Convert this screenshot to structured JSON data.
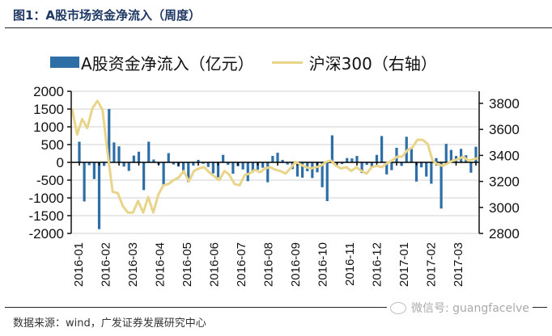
{
  "header": {
    "title": "图1：A股市场资金净流入（周度）"
  },
  "legend": {
    "bar_label": "A股资金净流入（亿元）",
    "line_label": "沪深300（右轴）"
  },
  "footer": {
    "source": "数据来源：wind，广发证券发展研究中心",
    "watermark": "微信号: guangfacelve"
  },
  "colors": {
    "bar": "#2e6ea6",
    "line": "#e8d58a",
    "grid": "#d0d0d0",
    "axis": "#111111"
  },
  "chart_data": {
    "type": "bar+line",
    "title": "A股市场资金净流入（周度）",
    "xlabel": "",
    "ylabel": "A股资金净流入（亿元）",
    "ylabel_right": "沪深300（右轴）",
    "ylim": [
      -2000,
      2000
    ],
    "ylim_right": [
      2800,
      3800
    ],
    "yticks": [
      "2000",
      "1500",
      "1000",
      "500",
      "0",
      "-500",
      "-1000",
      "-1500",
      "-2000"
    ],
    "yticks_right": [
      "3800",
      "3600",
      "3400",
      "3200",
      "3000",
      "2800"
    ],
    "xtick_labels": [
      "2016-01",
      "2016-02",
      "2016-03",
      "2016-04",
      "2016-05",
      "2016-06",
      "2016-07",
      "2016-08",
      "2016-09",
      "2016-10",
      "2016-11",
      "2016-12",
      "2017-01",
      "2017-02",
      "2017-03"
    ],
    "grid": true,
    "legend_position": "top",
    "series": [
      {
        "name": "A股资金净流入（亿元）",
        "type": "bar",
        "axis": "left",
        "values": [
          580,
          -1100,
          -80,
          -470,
          -1880,
          -100,
          1500,
          560,
          450,
          -120,
          -240,
          190,
          300,
          -780,
          580,
          80,
          -60,
          -660,
          260,
          -60,
          -120,
          -320,
          -560,
          -90,
          70,
          -40,
          -130,
          -310,
          -420,
          210,
          -70,
          -320,
          -110,
          -200,
          -530,
          -280,
          -210,
          -150,
          -560,
          180,
          270,
          70,
          -60,
          -190,
          -400,
          -430,
          -250,
          -440,
          -280,
          -700,
          -1090,
          760,
          -30,
          -50,
          120,
          110,
          180,
          -300,
          -70,
          -160,
          210,
          740,
          -340,
          -220,
          410,
          -100,
          720,
          390,
          -540,
          -140,
          -400,
          -600,
          120,
          -1300,
          520,
          350,
          180,
          380,
          200,
          -290,
          440
        ]
      },
      {
        "name": "沪深300（右轴）",
        "type": "line",
        "axis": "right",
        "values": [
          3760,
          3560,
          3680,
          3610,
          3760,
          3820,
          3750,
          3420,
          3120,
          3110,
          3010,
          2960,
          2960,
          3050,
          2960,
          3080,
          2960,
          3100,
          3170,
          3180,
          3210,
          3230,
          3280,
          3200,
          3280,
          3300,
          3310,
          3270,
          3240,
          3210,
          3280,
          3250,
          3180,
          3170,
          3250,
          3260,
          3290,
          3270,
          3300,
          3310,
          3290,
          3280,
          3260,
          3300,
          3350,
          3330,
          3310,
          3300,
          3310,
          3320,
          3350,
          3360,
          3320,
          3300,
          3310,
          3280,
          3310,
          3280,
          3260,
          3310,
          3320,
          3310,
          3340,
          3360,
          3390,
          3390,
          3440,
          3460,
          3520,
          3520,
          3490,
          3360,
          3330,
          3320,
          3340,
          3360,
          3370,
          3390,
          3360,
          3370,
          3380
        ]
      }
    ]
  }
}
